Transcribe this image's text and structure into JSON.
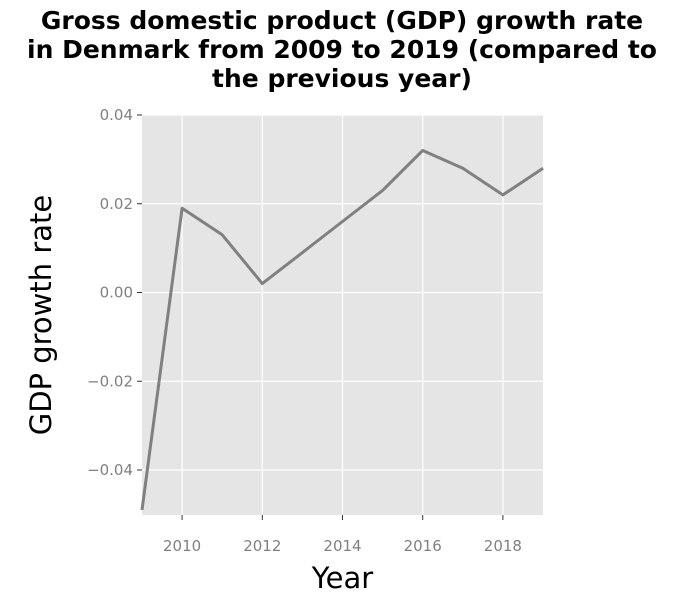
{
  "chart_data": {
    "type": "line",
    "title_lines": [
      "Gross domestic product (GDP) growth rate",
      "in Denmark from 2009 to 2019 (compared to",
      "the previous year)"
    ],
    "xlabel": "Year",
    "ylabel": "GDP growth rate",
    "x": [
      2009,
      2010,
      2011,
      2012,
      2013,
      2014,
      2015,
      2016,
      2017,
      2018,
      2019
    ],
    "series": [
      {
        "values": [
          -0.049,
          0.019,
          0.013,
          0.002,
          0.009,
          0.016,
          0.023,
          0.032,
          0.028,
          0.022,
          0.028
        ]
      }
    ],
    "xlim": [
      2009,
      2019
    ],
    "ylim": [
      -0.05,
      0.04
    ],
    "xticks": [
      2010,
      2012,
      2014,
      2016,
      2018
    ],
    "xtick_labels": [
      "2010",
      "2012",
      "2014",
      "2016",
      "2018"
    ],
    "yticks": [
      -0.04,
      -0.02,
      0.0,
      0.02,
      0.04
    ],
    "ytick_labels": [
      "−0.04",
      "−0.02",
      "0.00",
      "0.02",
      "0.04"
    ],
    "grid": true,
    "legend": "none",
    "colors": {
      "panel": "#e5e5e5",
      "grid": "#ffffff",
      "line": "#808080",
      "tick_text": "#808080"
    }
  }
}
